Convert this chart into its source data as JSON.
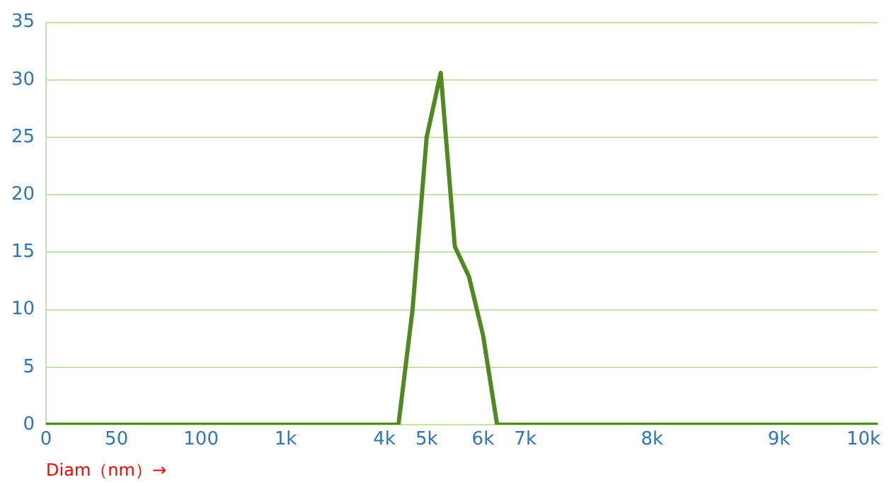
{
  "chart_data": {
    "type": "line",
    "xlabel": "Diam（nm）→",
    "categories": [
      "0",
      null,
      null,
      null,
      null,
      "50",
      null,
      null,
      null,
      null,
      null,
      "100",
      null,
      null,
      null,
      null,
      null,
      "1k",
      null,
      null,
      null,
      null,
      null,
      null,
      "4k",
      null,
      null,
      "5k",
      null,
      null,
      null,
      "6k",
      null,
      null,
      "7k",
      null,
      null,
      null,
      null,
      null,
      null,
      null,
      null,
      "8k",
      null,
      null,
      null,
      null,
      null,
      null,
      null,
      null,
      "9k",
      null,
      null,
      null,
      null,
      null,
      "10k",
      null
    ],
    "series": [
      {
        "color": "#4e8a1f",
        "values": [
          0,
          0,
          0,
          0,
          0,
          0,
          0,
          0,
          0,
          0,
          0,
          0,
          0,
          0,
          0,
          0,
          0,
          0,
          0,
          0,
          0,
          0,
          0,
          0,
          0,
          0,
          10,
          25,
          30.6,
          15.5,
          12.9,
          7.8,
          0,
          0,
          0,
          0,
          0,
          0,
          0,
          0,
          0,
          0,
          0,
          0,
          0,
          0,
          0,
          0,
          0,
          0,
          0,
          0,
          0,
          0,
          0,
          0,
          0,
          0,
          0,
          0
        ]
      }
    ],
    "ylim": [
      0,
      35
    ],
    "yticks": [
      0,
      5,
      10,
      15,
      20,
      25,
      30,
      35
    ],
    "grid": "y",
    "legend": false,
    "marker": "none",
    "line_style": "solid"
  }
}
